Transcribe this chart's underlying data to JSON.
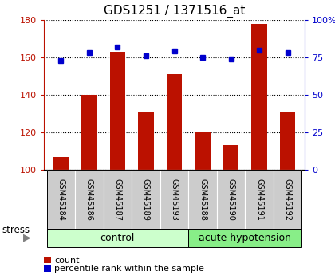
{
  "title": "GDS1251 / 1371516_at",
  "samples": [
    "GSM45184",
    "GSM45186",
    "GSM45187",
    "GSM45189",
    "GSM45193",
    "GSM45188",
    "GSM45190",
    "GSM45191",
    "GSM45192"
  ],
  "counts": [
    107,
    140,
    163,
    131,
    151,
    120,
    113,
    178,
    131
  ],
  "percentiles": [
    73,
    78,
    82,
    76,
    79,
    75,
    74,
    80,
    78
  ],
  "ylim_left": [
    100,
    180
  ],
  "ylim_right": [
    0,
    100
  ],
  "yticks_left": [
    100,
    120,
    140,
    160,
    180
  ],
  "yticks_right": [
    0,
    25,
    50,
    75,
    100
  ],
  "ytick_labels_right": [
    "0",
    "25",
    "50",
    "75",
    "100%"
  ],
  "bar_color": "#bb1100",
  "dot_color": "#0000cc",
  "bar_width": 0.55,
  "n_control": 5,
  "n_acute": 4,
  "control_label": "control",
  "acute_label": "acute hypotension",
  "stress_label": "stress",
  "group_bg_control": "#ccffcc",
  "group_bg_acute": "#88ee88",
  "sample_bg_color": "#cccccc",
  "legend_count_label": "count",
  "legend_pct_label": "percentile rank within the sample",
  "title_fontsize": 11,
  "tick_fontsize": 8,
  "group_fontsize": 9,
  "sample_fontsize": 7,
  "legend_fontsize": 8
}
